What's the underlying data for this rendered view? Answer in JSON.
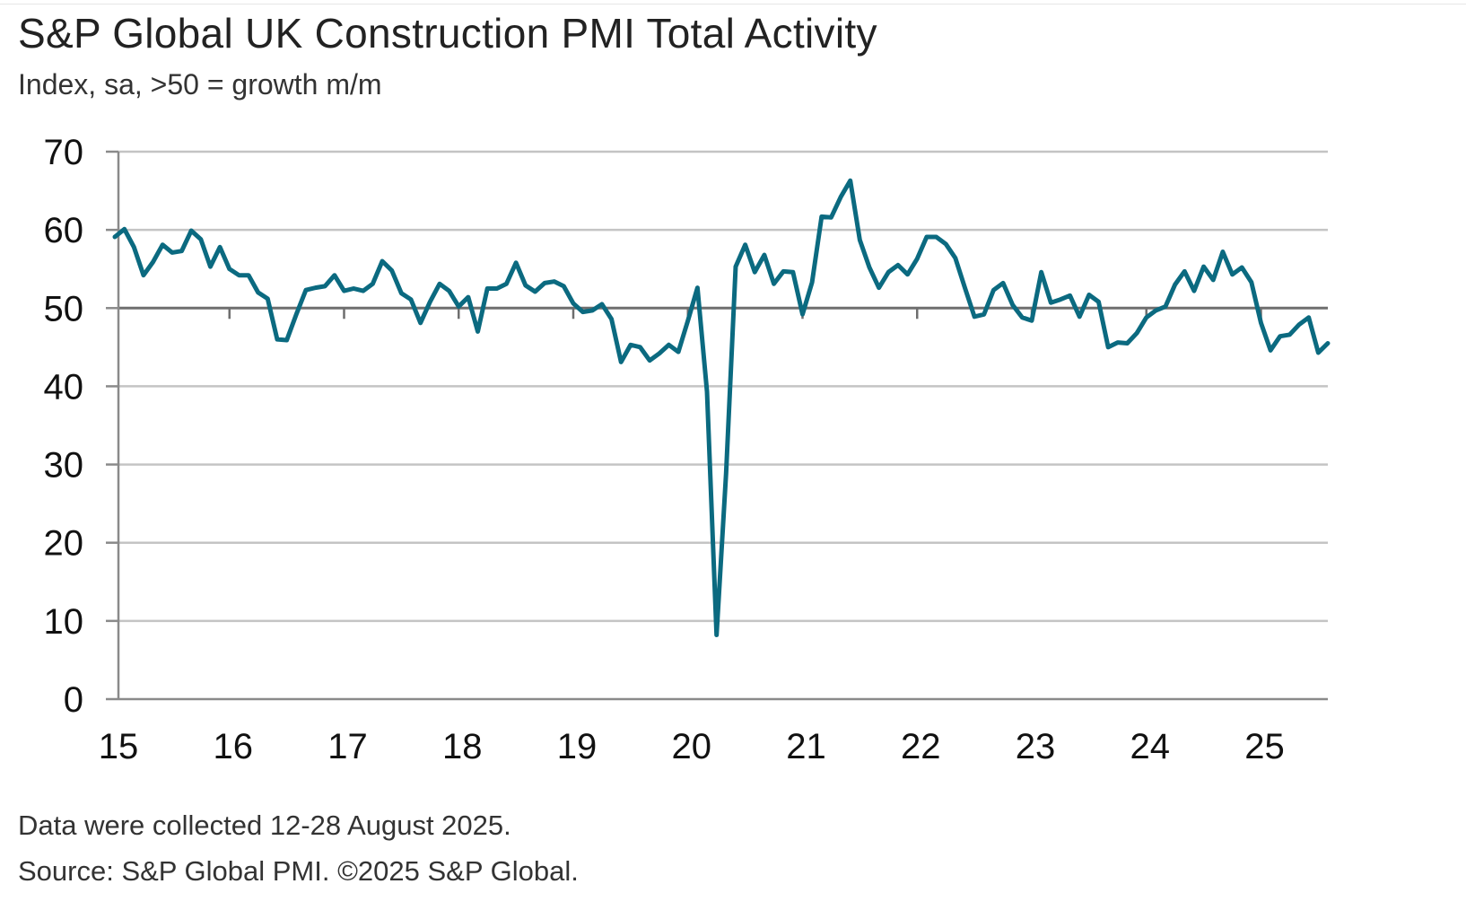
{
  "chart_data": {
    "type": "line",
    "title": "S&P Global UK Construction PMI Total Activity",
    "subtitle": "Index, sa, >50 = growth m/m",
    "xlabel": "",
    "ylabel": "",
    "ylim": [
      0,
      70
    ],
    "yticks": [
      0,
      10,
      20,
      30,
      40,
      50,
      60,
      70
    ],
    "xticks": [
      "15",
      "16",
      "17",
      "18",
      "19",
      "20",
      "21",
      "22",
      "23",
      "24",
      "25"
    ],
    "x_start": "2015-01",
    "x_end": "2025-08",
    "reference_line": 50,
    "grid": "horizontal",
    "line_color": "#0b6a80",
    "series": [
      {
        "name": "",
        "values": [
          59.1,
          60.1,
          57.8,
          54.2,
          55.9,
          58.1,
          57.1,
          57.3,
          59.9,
          58.8,
          55.3,
          57.8,
          55.0,
          54.2,
          54.2,
          52.0,
          51.2,
          46.0,
          45.9,
          49.2,
          52.3,
          52.6,
          52.8,
          54.2,
          52.2,
          52.5,
          52.2,
          53.1,
          56.0,
          54.8,
          51.9,
          51.1,
          48.1,
          50.8,
          53.1,
          52.2,
          50.2,
          51.4,
          47.0,
          52.5,
          52.5,
          53.1,
          55.8,
          52.9,
          52.1,
          53.2,
          53.4,
          52.8,
          50.6,
          49.5,
          49.7,
          50.5,
          48.6,
          43.1,
          45.3,
          45.0,
          43.3,
          44.2,
          45.3,
          44.4,
          48.4,
          52.6,
          39.3,
          8.2,
          28.9,
          55.3,
          58.1,
          54.6,
          56.8,
          53.1,
          54.7,
          54.6,
          49.2,
          53.3,
          61.7,
          61.6,
          64.2,
          66.3,
          58.7,
          55.2,
          52.6,
          54.6,
          55.5,
          54.3,
          56.3,
          59.1,
          59.1,
          58.2,
          56.4,
          52.6,
          48.9,
          49.2,
          52.3,
          53.2,
          50.4,
          48.8,
          48.4,
          54.6,
          50.7,
          51.1,
          51.6,
          48.9,
          51.7,
          50.8,
          45.0,
          45.6,
          45.5,
          46.8,
          48.8,
          49.7,
          50.2,
          53.0,
          54.7,
          52.2,
          55.3,
          53.6,
          57.2,
          54.3,
          55.2,
          53.3,
          48.1,
          44.6,
          46.4,
          46.6,
          47.9,
          48.8,
          44.3,
          45.5
        ]
      }
    ]
  },
  "footer": {
    "note": "Data were collected 12-28 August 2025.",
    "source": "Source: S&P Global PMI. ©2025 S&P Global."
  }
}
